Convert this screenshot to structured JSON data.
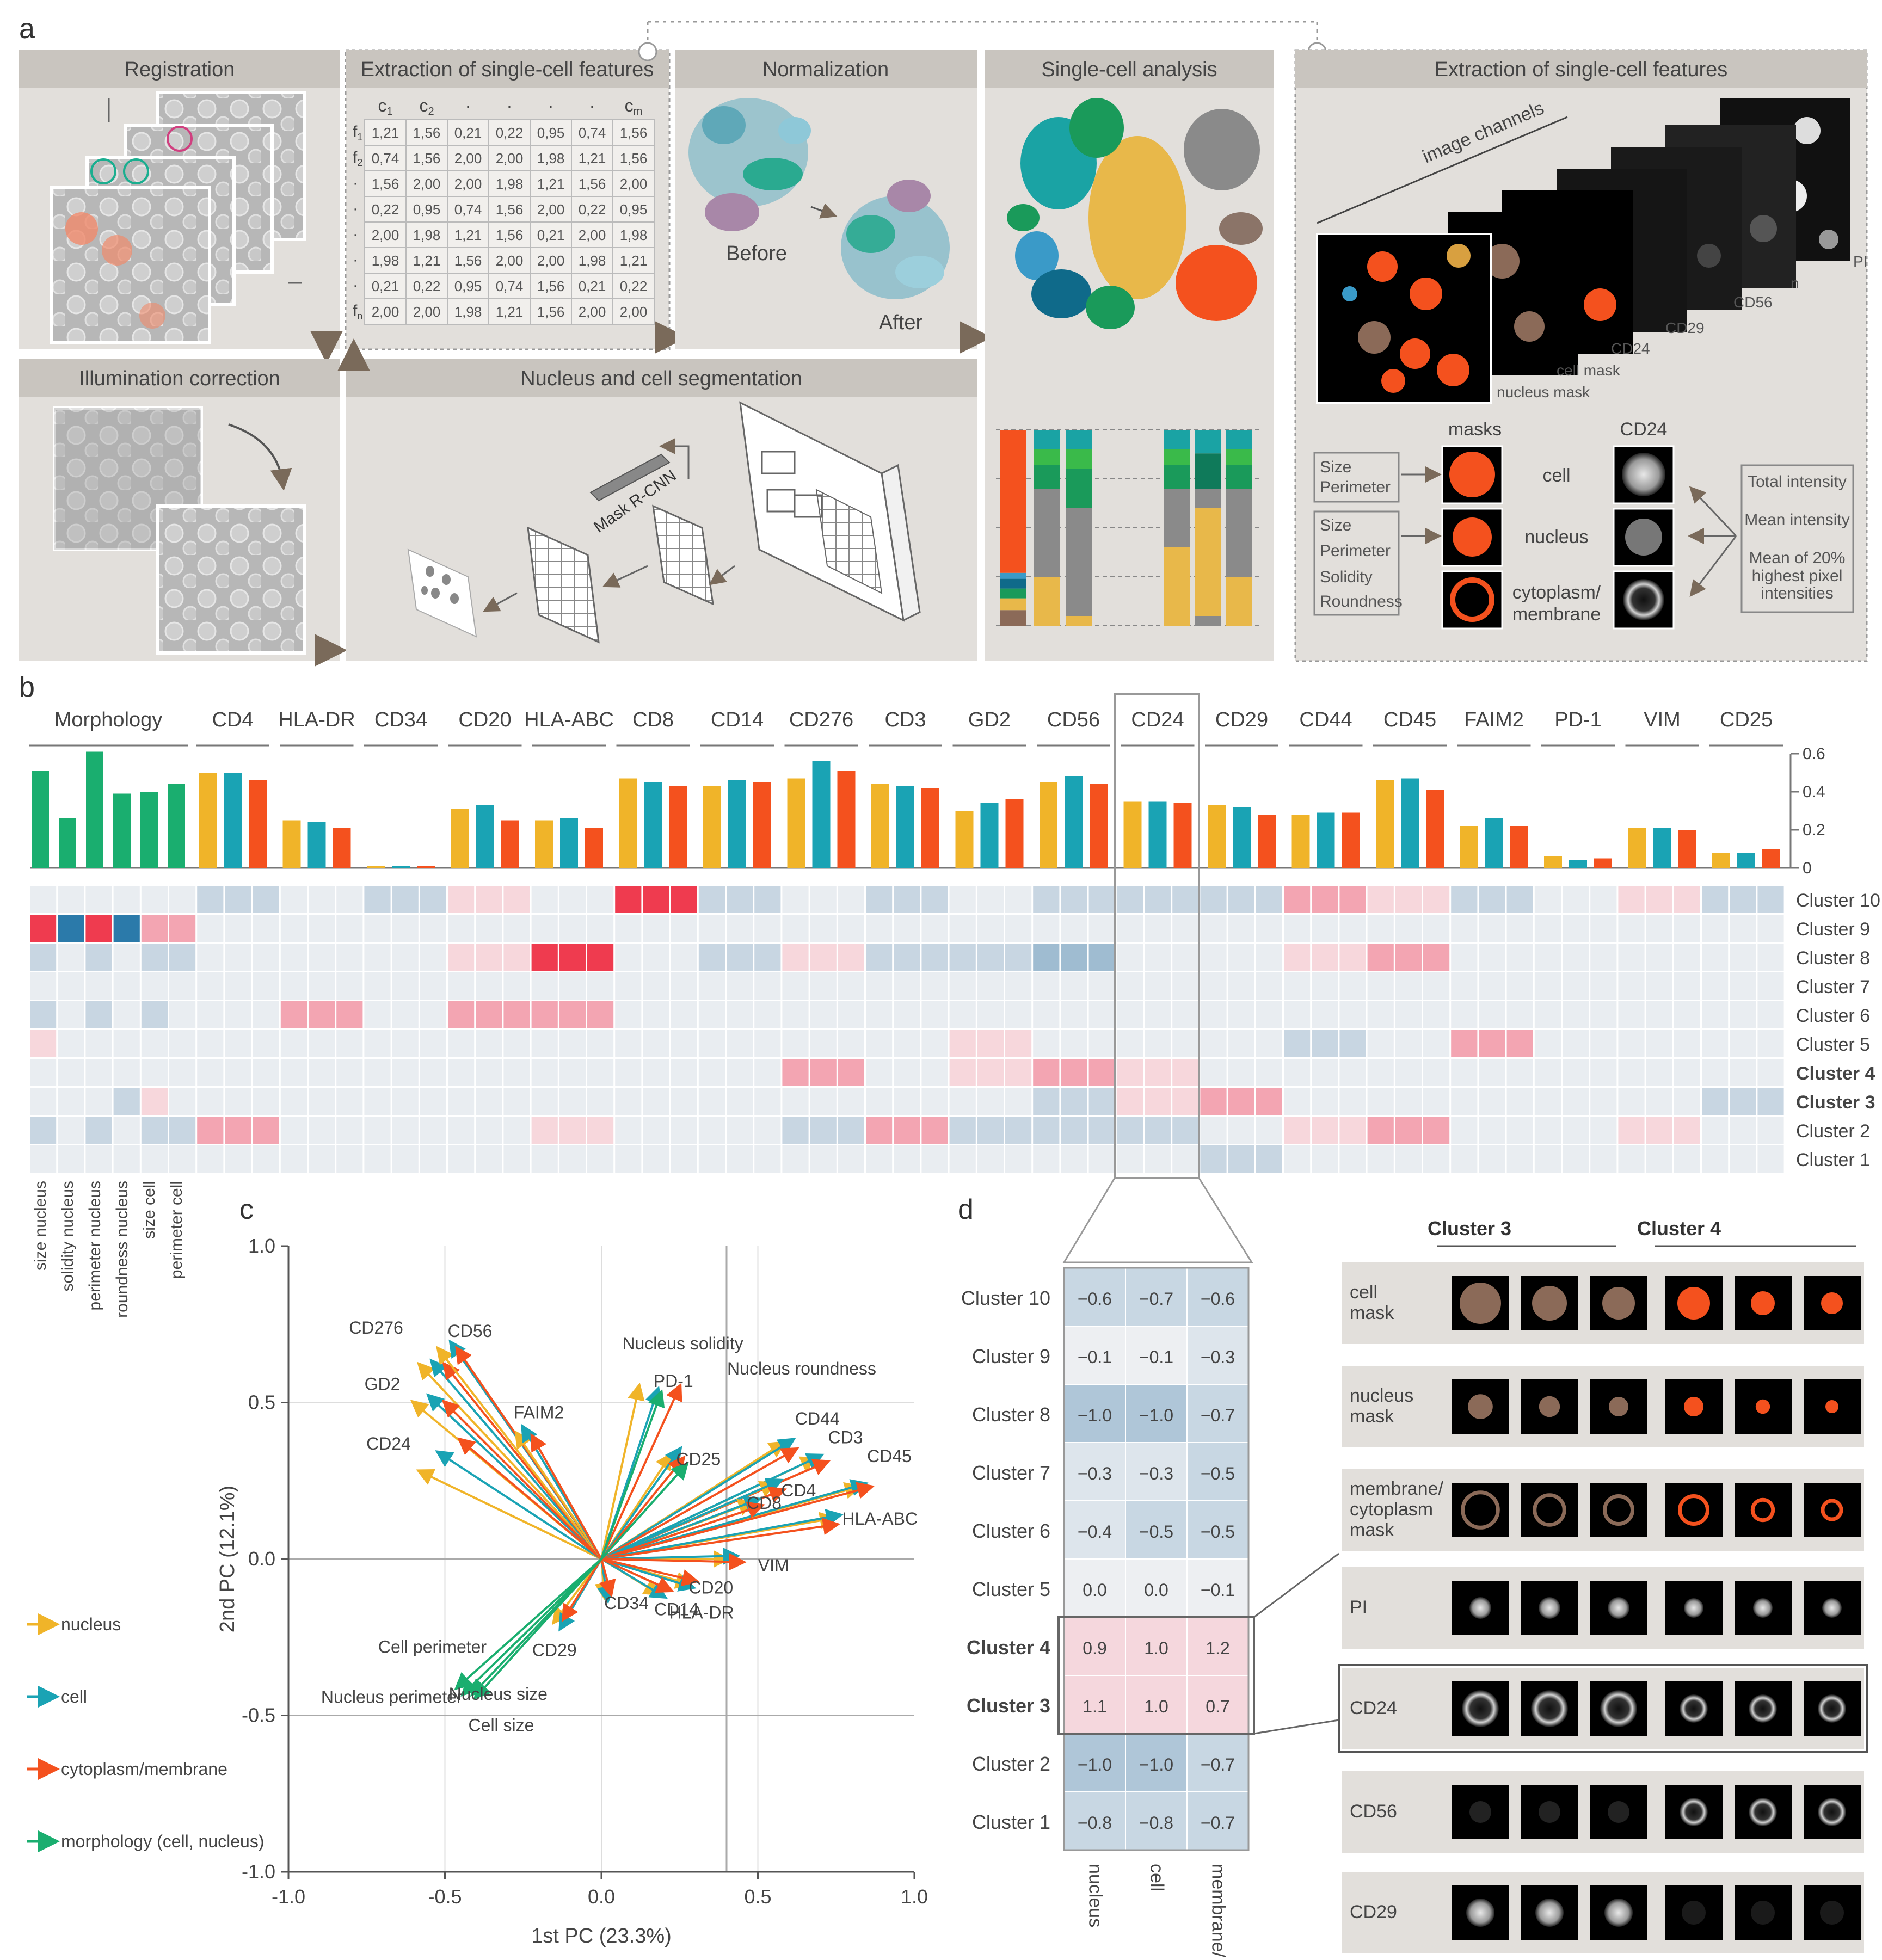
{
  "panels": {
    "a": "a",
    "b": "b",
    "c": "c",
    "d": "d"
  },
  "colors": {
    "yellow": "#F0B429",
    "teal": "#1AA3B4",
    "orange": "#F4511E",
    "green": "#1AAE6F",
    "panel_bg": "#E2DFDB",
    "panel_header": "#C9C5BF",
    "text": "#444444"
  },
  "panel_a": {
    "registration": "Registration",
    "extraction_title": "Extraction of single-cell features",
    "normalization": "Normalization",
    "before": "Before",
    "after": "After",
    "single_cell_analysis": "Single-cell analysis",
    "extraction_title_2": "Extraction of single-cell features",
    "illumination": "Illumination correction",
    "segmentation": "Nucleus and cell segmentation",
    "mask_rcnn": "Mask R-CNN",
    "image_channels": "image channels",
    "channel_labels": [
      "PI",
      "CD56",
      "CD29",
      "CD24",
      "cell mask",
      "nucleus mask"
    ],
    "n_label": "n",
    "masks": "masks",
    "cd24": "CD24",
    "cell": "cell",
    "nucleus": "nucleus",
    "cytoplasm": [
      "cytoplasm/",
      "membrane"
    ],
    "feature_box1": [
      "Size",
      "Perimeter"
    ],
    "feature_box2": [
      "Size",
      "Perimeter",
      "Solidity",
      "Roundness"
    ],
    "intensity_box": [
      "Total intensity",
      "Mean intensity",
      "Mean of 20%",
      "highest pixel",
      "intensities"
    ],
    "table": {
      "columns": [
        "c1",
        "c2",
        "·",
        "·",
        "·",
        "·",
        "cm"
      ],
      "col_text": [
        "c",
        "c",
        "·",
        "·",
        "·",
        "·",
        "c"
      ],
      "col_sub": [
        "1",
        "2",
        "",
        "",
        "",
        "",
        "m"
      ],
      "row_text": [
        "f",
        "f",
        "·",
        "·",
        "·",
        "·",
        "·",
        "f"
      ],
      "row_sub": [
        "1",
        "2",
        "",
        "",
        "",
        "",
        "",
        "n"
      ],
      "rows": [
        [
          "1,21",
          "1,56",
          "0,21",
          "0,22",
          "0,95",
          "0,74",
          "1,56"
        ],
        [
          "0,74",
          "1,56",
          "2,00",
          "2,00",
          "1,98",
          "1,21",
          "1,56"
        ],
        [
          "1,56",
          "2,00",
          "2,00",
          "1,98",
          "1,21",
          "1,56",
          "2,00"
        ],
        [
          "0,22",
          "0,95",
          "0,74",
          "1,56",
          "2,00",
          "0,22",
          "0,95"
        ],
        [
          "2,00",
          "1,98",
          "1,21",
          "1,56",
          "0,21",
          "2,00",
          "1,98"
        ],
        [
          "1,98",
          "1,21",
          "1,56",
          "2,00",
          "2,00",
          "1,98",
          "1,21"
        ],
        [
          "0,21",
          "0,22",
          "0,95",
          "0,74",
          "1,56",
          "0,21",
          "0,22"
        ],
        [
          "2,00",
          "2,00",
          "1,98",
          "1,21",
          "1,56",
          "2,00",
          "2,00"
        ]
      ]
    }
  },
  "chart_data": [
    {
      "type": "bar",
      "groups": [
        "Morphology",
        "CD4",
        "HLA-DR",
        "CD34",
        "CD20",
        "HLA-ABC",
        "CD8",
        "CD14",
        "CD276",
        "CD3",
        "GD2",
        "CD56",
        "CD24",
        "CD29",
        "CD44",
        "CD45",
        "FAIM2",
        "PD-1",
        "VIM",
        "CD25"
      ],
      "morphology_features": [
        "size nucleus",
        "solidity nucleus",
        "perimeter nucleus",
        "roundness nucleus",
        "size cell",
        "perimeter cell"
      ],
      "morphology_values": [
        0.51,
        0.26,
        0.61,
        0.39,
        0.4,
        0.44
      ],
      "marker_series": [
        "nucleus",
        "cell",
        "cytoplasm/membrane"
      ],
      "marker_values": [
        [
          0.5,
          0.5,
          0.46
        ],
        [
          0.25,
          0.24,
          0.21
        ],
        [
          0.01,
          0.01,
          0.01
        ],
        [
          0.31,
          0.33,
          0.25
        ],
        [
          0.25,
          0.26,
          0.21
        ],
        [
          0.47,
          0.45,
          0.43
        ],
        [
          0.43,
          0.46,
          0.45
        ],
        [
          0.47,
          0.56,
          0.51
        ],
        [
          0.44,
          0.43,
          0.42
        ],
        [
          0.3,
          0.34,
          0.36
        ],
        [
          0.45,
          0.48,
          0.44
        ],
        [
          0.35,
          0.35,
          0.34
        ],
        [
          0.33,
          0.32,
          0.28
        ],
        [
          0.28,
          0.29,
          0.29
        ],
        [
          0.46,
          0.47,
          0.41
        ],
        [
          0.22,
          0.26,
          0.22
        ],
        [
          0.06,
          0.04,
          0.05
        ],
        [
          0.21,
          0.21,
          0.2
        ],
        [
          0.08,
          0.08,
          0.1
        ]
      ],
      "y_ticks": [
        "0",
        "0.2",
        "0.4",
        "0.6"
      ],
      "ylim": [
        0,
        0.6
      ]
    },
    {
      "type": "heatmap",
      "rows": [
        "Cluster 10",
        "Cluster 9",
        "Cluster 8",
        "Cluster 7",
        "Cluster 6",
        "Cluster 5",
        "Cluster 4",
        "Cluster 3",
        "Cluster 2",
        "Cluster 1"
      ],
      "bold_rows": [
        "Cluster 4",
        "Cluster 3"
      ]
    },
    {
      "type": "scatter",
      "xlabel": "1st PC (23.3%)",
      "ylabel": "2nd PC (12.1%)",
      "x_ticks": [
        "-1.0",
        "-0.5",
        "0.0",
        "0.5",
        "1.0"
      ],
      "y_ticks": [
        "1.0",
        "0.5",
        "0.0",
        "-0.5",
        "-1.0"
      ],
      "xlim": [
        -1,
        1
      ],
      "ylim": [
        -1,
        1
      ],
      "legend": [
        "nucleus",
        "cell",
        "cytoplasm/membrane",
        "morphology (cell, nucleus)"
      ],
      "labels": [
        {
          "text": "CD276",
          "x": -0.72,
          "y": 0.72
        },
        {
          "text": "CD56",
          "x": -0.42,
          "y": 0.71
        },
        {
          "text": "GD2",
          "x": -0.7,
          "y": 0.54
        },
        {
          "text": "CD24",
          "x": -0.68,
          "y": 0.35
        },
        {
          "text": "FAIM2",
          "x": -0.2,
          "y": 0.45
        },
        {
          "text": "Nucleus solidity",
          "x": 0.26,
          "y": 0.67
        },
        {
          "text": "PD-1",
          "x": 0.23,
          "y": 0.55
        },
        {
          "text": "Nucleus roundness",
          "x": 0.64,
          "y": 0.59
        },
        {
          "text": "CD44",
          "x": 0.69,
          "y": 0.43
        },
        {
          "text": "CD3",
          "x": 0.78,
          "y": 0.37
        },
        {
          "text": "CD45",
          "x": 0.92,
          "y": 0.31
        },
        {
          "text": "CD25",
          "x": 0.31,
          "y": 0.3
        },
        {
          "text": "CD4",
          "x": 0.63,
          "y": 0.2
        },
        {
          "text": "CD8",
          "x": 0.52,
          "y": 0.16
        },
        {
          "text": "HLA-ABC",
          "x": 0.89,
          "y": 0.11
        },
        {
          "text": "VIM",
          "x": 0.55,
          "y": -0.04
        },
        {
          "text": "CD20",
          "x": 0.35,
          "y": -0.11
        },
        {
          "text": "HLA-DR",
          "x": 0.32,
          "y": -0.19
        },
        {
          "text": "CD14",
          "x": 0.24,
          "y": -0.18
        },
        {
          "text": "CD34",
          "x": 0.08,
          "y": -0.16
        },
        {
          "text": "CD29",
          "x": -0.15,
          "y": -0.31
        },
        {
          "text": "Cell perimeter",
          "x": -0.54,
          "y": -0.3
        },
        {
          "text": "Nucleus perimeter",
          "x": -0.67,
          "y": -0.46
        },
        {
          "text": "Nucleus size",
          "x": -0.33,
          "y": -0.45
        },
        {
          "text": "Cell size",
          "x": -0.32,
          "y": -0.55
        }
      ],
      "vectors": [
        {
          "name": "CD276",
          "c": "yellow",
          "x": -0.58,
          "y": 0.62
        },
        {
          "name": "CD276",
          "c": "teal",
          "x": -0.54,
          "y": 0.63
        },
        {
          "name": "CD276",
          "c": "orange",
          "x": -0.5,
          "y": 0.62
        },
        {
          "name": "CD56",
          "c": "yellow",
          "x": -0.52,
          "y": 0.67
        },
        {
          "name": "CD56",
          "c": "teal",
          "x": -0.48,
          "y": 0.69
        },
        {
          "name": "CD56",
          "c": "orange",
          "x": -0.46,
          "y": 0.67
        },
        {
          "name": "GD2",
          "c": "yellow",
          "x": -0.6,
          "y": 0.5
        },
        {
          "name": "GD2",
          "c": "teal",
          "x": -0.55,
          "y": 0.52
        },
        {
          "name": "GD2",
          "c": "orange",
          "x": -0.5,
          "y": 0.5
        },
        {
          "name": "CD24",
          "c": "yellow",
          "x": -0.58,
          "y": 0.28
        },
        {
          "name": "CD24",
          "c": "teal",
          "x": -0.52,
          "y": 0.34
        },
        {
          "name": "CD24",
          "c": "orange",
          "x": -0.45,
          "y": 0.38
        },
        {
          "name": "FAIM2",
          "c": "yellow",
          "x": -0.27,
          "y": 0.4
        },
        {
          "name": "FAIM2",
          "c": "teal",
          "x": -0.25,
          "y": 0.42
        },
        {
          "name": "FAIM2",
          "c": "orange",
          "x": -0.22,
          "y": 0.39
        },
        {
          "name": "PD-1",
          "c": "yellow",
          "x": 0.12,
          "y": 0.55
        },
        {
          "name": "PD-1",
          "c": "teal",
          "x": 0.18,
          "y": 0.54
        },
        {
          "name": "PD-1",
          "c": "orange",
          "x": 0.25,
          "y": 0.55
        },
        {
          "name": "CD25",
          "c": "yellow",
          "x": 0.22,
          "y": 0.33
        },
        {
          "name": "CD25",
          "c": "teal",
          "x": 0.25,
          "y": 0.35
        },
        {
          "name": "CD25",
          "c": "orange",
          "x": 0.26,
          "y": 0.32
        },
        {
          "name": "CD44",
          "c": "yellow",
          "x": 0.58,
          "y": 0.37
        },
        {
          "name": "CD44",
          "c": "teal",
          "x": 0.61,
          "y": 0.38
        },
        {
          "name": "CD44",
          "c": "orange",
          "x": 0.62,
          "y": 0.35
        },
        {
          "name": "CD3",
          "c": "yellow",
          "x": 0.68,
          "y": 0.32
        },
        {
          "name": "CD3",
          "c": "teal",
          "x": 0.7,
          "y": 0.33
        },
        {
          "name": "CD3",
          "c": "orange",
          "x": 0.72,
          "y": 0.31
        },
        {
          "name": "CD45",
          "c": "yellow",
          "x": 0.82,
          "y": 0.23
        },
        {
          "name": "CD45",
          "c": "teal",
          "x": 0.84,
          "y": 0.24
        },
        {
          "name": "CD45",
          "c": "orange",
          "x": 0.86,
          "y": 0.23
        },
        {
          "name": "CD4",
          "c": "yellow",
          "x": 0.55,
          "y": 0.24
        },
        {
          "name": "CD4",
          "c": "teal",
          "x": 0.57,
          "y": 0.25
        },
        {
          "name": "CD4",
          "c": "orange",
          "x": 0.58,
          "y": 0.22
        },
        {
          "name": "CD8",
          "c": "yellow",
          "x": 0.48,
          "y": 0.18
        },
        {
          "name": "CD8",
          "c": "teal",
          "x": 0.5,
          "y": 0.19
        },
        {
          "name": "CD8",
          "c": "orange",
          "x": 0.51,
          "y": 0.17
        },
        {
          "name": "HLA-ABC",
          "c": "yellow",
          "x": 0.74,
          "y": 0.13
        },
        {
          "name": "HLA-ABC",
          "c": "teal",
          "x": 0.76,
          "y": 0.14
        },
        {
          "name": "HLA-ABC",
          "c": "orange",
          "x": 0.75,
          "y": 0.11
        },
        {
          "name": "VIM",
          "c": "yellow",
          "x": 0.4,
          "y": 0.0
        },
        {
          "name": "VIM",
          "c": "teal",
          "x": 0.43,
          "y": 0.01
        },
        {
          "name": "VIM",
          "c": "orange",
          "x": 0.45,
          "y": -0.01
        },
        {
          "name": "CD20",
          "c": "yellow",
          "x": 0.28,
          "y": -0.08
        },
        {
          "name": "CD20",
          "c": "teal",
          "x": 0.29,
          "y": -0.09
        },
        {
          "name": "CD20",
          "c": "orange",
          "x": 0.3,
          "y": -0.07
        },
        {
          "name": "CD14",
          "c": "yellow",
          "x": 0.18,
          "y": -0.11
        },
        {
          "name": "CD14",
          "c": "teal",
          "x": 0.2,
          "y": -0.12
        },
        {
          "name": "CD14",
          "c": "orange",
          "x": 0.22,
          "y": -0.1
        },
        {
          "name": "CD34",
          "c": "yellow",
          "x": 0.01,
          "y": -0.12
        },
        {
          "name": "CD34",
          "c": "teal",
          "x": 0.02,
          "y": -0.13
        },
        {
          "name": "CD34",
          "c": "orange",
          "x": 0.03,
          "y": -0.11
        },
        {
          "name": "CD29",
          "c": "yellow",
          "x": -0.15,
          "y": -0.2
        },
        {
          "name": "CD29",
          "c": "teal",
          "x": -0.13,
          "y": -0.22
        },
        {
          "name": "CD29",
          "c": "orange",
          "x": -0.12,
          "y": -0.19
        },
        {
          "name": "Cell perimeter",
          "c": "green",
          "x": -0.46,
          "y": -0.41
        },
        {
          "name": "Nucleus perimeter",
          "c": "green",
          "x": -0.44,
          "y": -0.43
        },
        {
          "name": "Nucleus size",
          "c": "green",
          "x": -0.41,
          "y": -0.43
        },
        {
          "name": "Cell size",
          "c": "green",
          "x": -0.4,
          "y": -0.44
        },
        {
          "name": "Nucleus solidity",
          "c": "green",
          "x": 0.19,
          "y": 0.53
        },
        {
          "name": "Nucleus roundness",
          "c": "green",
          "x": 0.27,
          "y": 0.3
        }
      ]
    },
    {
      "type": "table",
      "rows": [
        "Cluster 10",
        "Cluster 9",
        "Cluster 8",
        "Cluster 7",
        "Cluster 6",
        "Cluster 5",
        "Cluster 4",
        "Cluster 3",
        "Cluster 2",
        "Cluster 1"
      ],
      "columns": [
        "nucleus",
        "cell",
        "membrane/ cytoplasm"
      ],
      "cells": [
        [
          "−0.6",
          "−0.7",
          "−0.6"
        ],
        [
          "−0.1",
          "−0.1",
          "−0.3"
        ],
        [
          "−1.0",
          "−1.0",
          "−0.7"
        ],
        [
          "−0.3",
          "−0.3",
          "−0.5"
        ],
        [
          "−0.4",
          "−0.5",
          "−0.5"
        ],
        [
          "0.0",
          "0.0",
          "−0.1"
        ],
        [
          "0.9",
          "1.0",
          "1.2"
        ],
        [
          "1.1",
          "1.0",
          "0.7"
        ],
        [
          "−1.0",
          "−1.0",
          "−0.7"
        ],
        [
          "−0.8",
          "−0.8",
          "−0.7"
        ]
      ],
      "values": [
        [
          -0.6,
          -0.7,
          -0.6
        ],
        [
          -0.1,
          -0.1,
          -0.3
        ],
        [
          -1.0,
          -1.0,
          -0.7
        ],
        [
          -0.3,
          -0.3,
          -0.5
        ],
        [
          -0.4,
          -0.5,
          -0.5
        ],
        [
          0.0,
          0.0,
          -0.1
        ],
        [
          0.9,
          1.0,
          1.2
        ],
        [
          1.1,
          1.0,
          0.7
        ],
        [
          -1.0,
          -1.0,
          -0.7
        ],
        [
          -0.8,
          -0.8,
          -0.7
        ]
      ],
      "bold_rows": [
        "Cluster 4",
        "Cluster 3"
      ]
    }
  ],
  "panel_d_images": {
    "cluster3": "Cluster 3",
    "cluster4": "Cluster 4",
    "rows": [
      "cell mask",
      "nucleus mask",
      "membrane/ cytoplasm mask",
      "PI",
      "CD24",
      "CD56",
      "CD29"
    ],
    "row_lines": [
      [
        "cell",
        "mask"
      ],
      [
        "nucleus",
        "mask"
      ],
      [
        "membrane/",
        "cytoplasm",
        "mask"
      ],
      [
        "PI"
      ],
      [
        "CD24"
      ],
      [
        "CD56"
      ],
      [
        "CD29"
      ]
    ]
  }
}
